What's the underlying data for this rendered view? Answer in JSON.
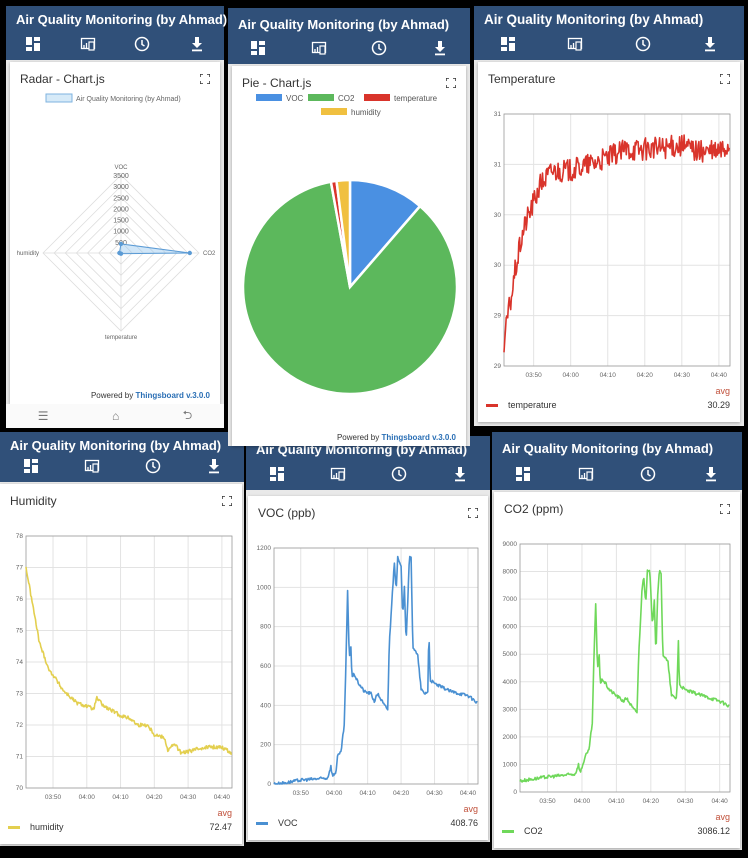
{
  "app_title": "Air Quality Monitoring (by Ahmad)",
  "toolbar_icons": [
    "dashboard-icon",
    "devices-icon",
    "clock-icon",
    "download-icon"
  ],
  "powered_by": {
    "prefix": "Powered by",
    "brand": "Thingsboard v.3.0.0"
  },
  "android_nav": {
    "menu": "☰",
    "home": "⌂",
    "back": "⮌"
  },
  "colors": {
    "header": "#305079",
    "voc": "#4a90e2",
    "co2": "#5cb85c",
    "temperature": "#d9342b",
    "humidity": "#f0c040",
    "avg": "#c0503a"
  },
  "widgets": {
    "radar": {
      "title": "Radar - Chart.js",
      "legend": "Air Quality Monitoring (by Ahmad)"
    },
    "pie": {
      "title": "Pie - Chart.js"
    },
    "temperature": {
      "title": "Temperature",
      "avg_label": "avg",
      "series": "temperature",
      "avg": "30.29"
    },
    "humidity": {
      "title": "Humidity",
      "avg_label": "avg",
      "series": "humidity",
      "avg": "72.47"
    },
    "voc": {
      "title": "VOC (ppb)",
      "avg_label": "avg",
      "series": "VOC",
      "avg": "408.76"
    },
    "co2": {
      "title": "CO2 (ppm)",
      "avg_label": "avg",
      "series": "CO2",
      "avg": "3086.12"
    }
  },
  "chart_data": [
    {
      "id": "radar",
      "type": "radar",
      "labels": [
        "VOC",
        "CO2",
        "temperature",
        "humidity"
      ],
      "values": [
        408.76,
        3086.12,
        30.29,
        72.47
      ],
      "rlim": [
        0,
        3500
      ],
      "ticks": [
        "500",
        "1000",
        "1500",
        "2000",
        "2500",
        "3000",
        "3500"
      ],
      "legend": "Air Quality Monitoring (by Ahmad)"
    },
    {
      "id": "pie",
      "type": "pie",
      "labels": [
        "VOC",
        "CO2",
        "temperature",
        "humidity"
      ],
      "values": [
        408.76,
        3086.12,
        30.29,
        72.47
      ],
      "colors": [
        "#4a90e2",
        "#5cb85c",
        "#d9342b",
        "#f0c040"
      ]
    },
    {
      "id": "temperature",
      "type": "line",
      "title": "Temperature",
      "xunit": "minutes after 03:00",
      "xlim": [
        42,
        103
      ],
      "ylim": [
        29,
        31
      ],
      "yticks": [
        29,
        29.4,
        29.8,
        30.2,
        30.6,
        31
      ],
      "ytick_labels": [
        "29",
        "29",
        "30",
        "30",
        "31",
        "31"
      ],
      "xticks": [
        50,
        60,
        70,
        80,
        90,
        100
      ],
      "xtick_labels": [
        "03:50",
        "04:00",
        "04:10",
        "04:20",
        "04:30",
        "04:40"
      ],
      "color": "#d9342b",
      "noise": 0.09,
      "points": [
        [
          42,
          29.15
        ],
        [
          43,
          29.4
        ],
        [
          44,
          29.55
        ],
        [
          45,
          29.75
        ],
        [
          46,
          29.9
        ],
        [
          47,
          30.05
        ],
        [
          48,
          30.15
        ],
        [
          50,
          30.3
        ],
        [
          52,
          30.45
        ],
        [
          55,
          30.55
        ],
        [
          60,
          30.55
        ],
        [
          65,
          30.6
        ],
        [
          70,
          30.65
        ],
        [
          75,
          30.72
        ],
        [
          80,
          30.72
        ],
        [
          90,
          30.75
        ],
        [
          95,
          30.7
        ],
        [
          100,
          30.7
        ],
        [
          103,
          30.75
        ]
      ]
    },
    {
      "id": "humidity",
      "type": "line",
      "title": "Humidity",
      "xunit": "minutes after 03:00",
      "xlim": [
        42,
        103
      ],
      "ylim": [
        70,
        78
      ],
      "yticks": [
        70,
        71,
        72,
        73,
        74,
        75,
        76,
        77,
        78
      ],
      "ytick_labels": [
        "70",
        "71",
        "72",
        "73",
        "74",
        "75",
        "76",
        "77",
        "78"
      ],
      "xticks": [
        50,
        60,
        70,
        80,
        90,
        100
      ],
      "xtick_labels": [
        "03:50",
        "04:00",
        "04:10",
        "04:20",
        "04:30",
        "04:40"
      ],
      "color": "#e3cf4f",
      "noise": 0.06,
      "points": [
        [
          42,
          77
        ],
        [
          44,
          75.8
        ],
        [
          46,
          74.6
        ],
        [
          48,
          74
        ],
        [
          49,
          73.7
        ],
        [
          50,
          73.6
        ],
        [
          53,
          73.1
        ],
        [
          57,
          72.7
        ],
        [
          60,
          72.6
        ],
        [
          62,
          72.5
        ],
        [
          63,
          72.85
        ],
        [
          65,
          72.6
        ],
        [
          70,
          72.3
        ],
        [
          73,
          72.2
        ],
        [
          75,
          72.0
        ],
        [
          78,
          72.0
        ],
        [
          80,
          71.7
        ],
        [
          83,
          71.6
        ],
        [
          84,
          71.2
        ],
        [
          86,
          71.4
        ],
        [
          88,
          71.1
        ],
        [
          95,
          71.3
        ],
        [
          100,
          71.3
        ],
        [
          103,
          71.1
        ]
      ]
    },
    {
      "id": "voc",
      "type": "line",
      "title": "VOC (ppb)",
      "xunit": "minutes after 03:00",
      "xlim": [
        42,
        103
      ],
      "ylim": [
        0,
        1200
      ],
      "yticks": [
        0,
        200,
        400,
        600,
        800,
        1000,
        1200
      ],
      "ytick_labels": [
        "0",
        "200",
        "400",
        "600",
        "800",
        "1000",
        "1200"
      ],
      "xticks": [
        50,
        60,
        70,
        80,
        90,
        100
      ],
      "xtick_labels": [
        "03:50",
        "04:00",
        "04:10",
        "04:20",
        "04:30",
        "04:40"
      ],
      "color": "#4a90d2",
      "noise": 8,
      "points": [
        [
          42,
          0
        ],
        [
          45,
          5
        ],
        [
          50,
          20
        ],
        [
          58,
          30
        ],
        [
          59,
          90
        ],
        [
          59.5,
          40
        ],
        [
          60.5,
          60
        ],
        [
          61,
          140
        ],
        [
          62,
          160
        ],
        [
          63,
          300
        ],
        [
          63.5,
          600
        ],
        [
          64,
          980
        ],
        [
          64.5,
          650
        ],
        [
          65,
          700
        ],
        [
          65.3,
          540
        ],
        [
          66,
          560
        ],
        [
          67,
          520
        ],
        [
          69,
          470
        ],
        [
          71,
          460
        ],
        [
          72,
          420
        ],
        [
          73,
          460
        ],
        [
          75,
          400
        ],
        [
          76,
          380
        ],
        [
          76.5,
          720
        ],
        [
          77.5,
          1000
        ],
        [
          78,
          1130
        ],
        [
          78.5,
          980
        ],
        [
          79,
          1150
        ],
        [
          80,
          1100
        ],
        [
          80.5,
          850
        ],
        [
          81,
          1010
        ],
        [
          81.5,
          720
        ],
        [
          82.5,
          1150
        ],
        [
          83,
          1150
        ],
        [
          83.5,
          700
        ],
        [
          85,
          650
        ],
        [
          86,
          480
        ],
        [
          87,
          460
        ],
        [
          88,
          470
        ],
        [
          88.3,
          780
        ],
        [
          88.7,
          530
        ],
        [
          90,
          510
        ],
        [
          95,
          470
        ],
        [
          100,
          450
        ],
        [
          103,
          410
        ]
      ]
    },
    {
      "id": "co2",
      "type": "line",
      "title": "CO2 (ppm)",
      "xunit": "minutes after 03:00",
      "xlim": [
        42,
        103
      ],
      "ylim": [
        0,
        9000
      ],
      "yticks": [
        0,
        1000,
        2000,
        3000,
        4000,
        5000,
        6000,
        7000,
        8000,
        9000
      ],
      "ytick_labels": [
        "0",
        "1000",
        "2000",
        "3000",
        "4000",
        "5000",
        "6000",
        "7000",
        "8000",
        "9000"
      ],
      "xticks": [
        50,
        60,
        70,
        80,
        90,
        100
      ],
      "xtick_labels": [
        "03:50",
        "04:00",
        "04:10",
        "04:20",
        "04:30",
        "04:40"
      ],
      "color": "#6fd85a",
      "noise": 60,
      "points": [
        [
          42,
          400
        ],
        [
          50,
          550
        ],
        [
          58,
          650
        ],
        [
          59,
          1000
        ],
        [
          59.5,
          700
        ],
        [
          61,
          1300
        ],
        [
          62,
          1500
        ],
        [
          63,
          2500
        ],
        [
          63.5,
          5000
        ],
        [
          64,
          6800
        ],
        [
          64.5,
          4500
        ],
        [
          65,
          5000
        ],
        [
          65.3,
          3900
        ],
        [
          66,
          4100
        ],
        [
          68,
          3700
        ],
        [
          70,
          3500
        ],
        [
          72,
          3300
        ],
        [
          73,
          3400
        ],
        [
          75,
          3000
        ],
        [
          76,
          2900
        ],
        [
          76.5,
          5000
        ],
        [
          77.5,
          7500
        ],
        [
          78,
          7800
        ],
        [
          78.5,
          6800
        ],
        [
          79,
          8000
        ],
        [
          79.7,
          8000
        ],
        [
          80.5,
          6000
        ],
        [
          81,
          7000
        ],
        [
          81.5,
          5000
        ],
        [
          82,
          7200
        ],
        [
          82.5,
          8000
        ],
        [
          83,
          7900
        ],
        [
          83.5,
          5000
        ],
        [
          85,
          4700
        ],
        [
          86,
          3500
        ],
        [
          87.5,
          3400
        ],
        [
          88,
          5500
        ],
        [
          88.3,
          3900
        ],
        [
          90,
          3700
        ],
        [
          95,
          3500
        ],
        [
          100,
          3300
        ],
        [
          103,
          3100
        ]
      ]
    }
  ]
}
